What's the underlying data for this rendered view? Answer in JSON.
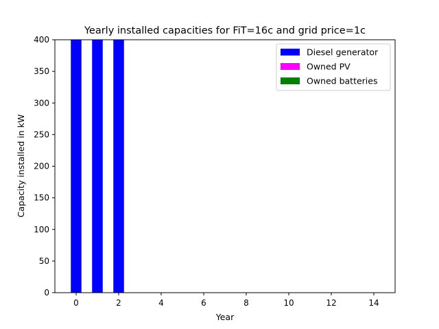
{
  "chart_data": {
    "type": "bar",
    "title": "Yearly installed capacities for FiT=16c and grid price=1c",
    "xlabel": "Year",
    "ylabel": "Capacity installed in kW",
    "xlim": [
      -1,
      15
    ],
    "ylim": [
      0,
      400
    ],
    "xticks": [
      0,
      2,
      4,
      6,
      8,
      10,
      12,
      14
    ],
    "yticks": [
      0,
      50,
      100,
      150,
      200,
      250,
      300,
      350,
      400
    ],
    "x": [
      0,
      1,
      2,
      3,
      4,
      5,
      6,
      7,
      8,
      9,
      10,
      11,
      12,
      13,
      14
    ],
    "bar_width": 0.5,
    "grid": false,
    "legend_position": "top-right",
    "series": [
      {
        "name": "Diesel generator",
        "color": "#0000ff",
        "values": [
          400,
          400,
          400,
          0,
          0,
          0,
          0,
          0,
          0,
          0,
          0,
          0,
          0,
          0,
          0
        ]
      },
      {
        "name": "Owned PV",
        "color": "#ff00ff",
        "values": [
          0,
          0,
          0,
          0,
          0,
          0,
          0,
          0,
          0,
          0,
          0,
          0,
          0,
          0,
          0
        ]
      },
      {
        "name": "Owned batteries",
        "color": "#008000",
        "values": [
          0,
          0,
          0,
          0,
          0,
          0,
          0,
          0,
          0,
          0,
          0,
          0,
          0,
          0,
          0
        ]
      }
    ]
  }
}
